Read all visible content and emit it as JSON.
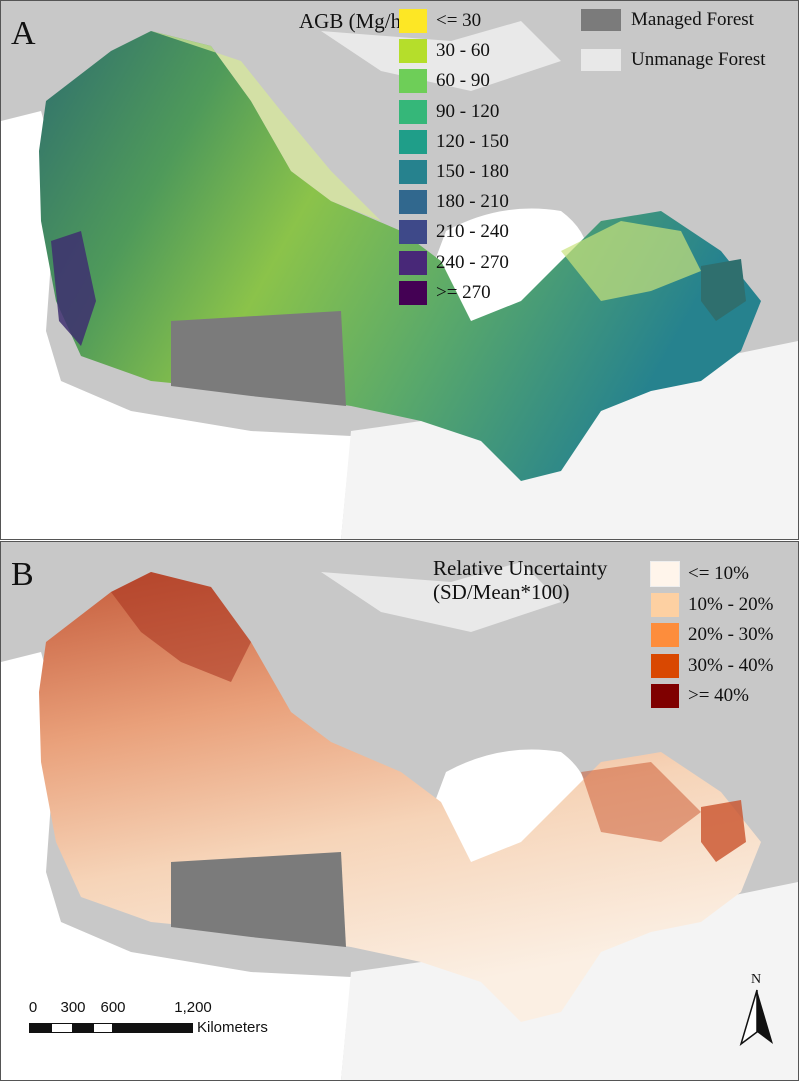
{
  "panel_a": {
    "letter": "A",
    "legend_title": "AGB (Mg/ha)",
    "classes": [
      {
        "label": "<= 30",
        "color": "#fde725"
      },
      {
        "label": "30 - 60",
        "color": "#b5de2b"
      },
      {
        "label": "60 - 90",
        "color": "#6ece58"
      },
      {
        "label": "90 - 120",
        "color": "#35b779"
      },
      {
        "label": "120 - 150",
        "color": "#1f9e89"
      },
      {
        "label": "150 - 180",
        "color": "#26828e"
      },
      {
        "label": "180 - 210",
        "color": "#31688e"
      },
      {
        "label": "210 - 240",
        "color": "#3e4989"
      },
      {
        "label": "240 - 270",
        "color": "#482878"
      },
      {
        "label": ">= 270",
        "color": "#440154"
      }
    ],
    "forest_classes": [
      {
        "label": "Managed Forest",
        "color": "#7b7b7b"
      },
      {
        "label": "Unmanage Forest",
        "color": "#e8e8e8"
      }
    ]
  },
  "panel_b": {
    "letter": "B",
    "legend_title_line1": "Relative Uncertainty",
    "legend_title_line2": "(SD/Mean*100)",
    "classes": [
      {
        "label": "<= 10%",
        "color": "#fff5eb"
      },
      {
        "label": "10% - 20%",
        "color": "#fdd0a2"
      },
      {
        "label": "20% - 30%",
        "color": "#fd8d3c"
      },
      {
        "label": "30% - 40%",
        "color": "#d94801"
      },
      {
        "label": ">= 40%",
        "color": "#7f0000"
      }
    ]
  },
  "scale_bar": {
    "ticks": [
      "0",
      "300",
      "600",
      "1,200"
    ],
    "unit": "Kilometers"
  },
  "north_arrow": {
    "label": "N"
  },
  "colors": {
    "land": "#c8c8c8",
    "water": "#ffffff",
    "managed_forest": "#7b7b7b"
  }
}
